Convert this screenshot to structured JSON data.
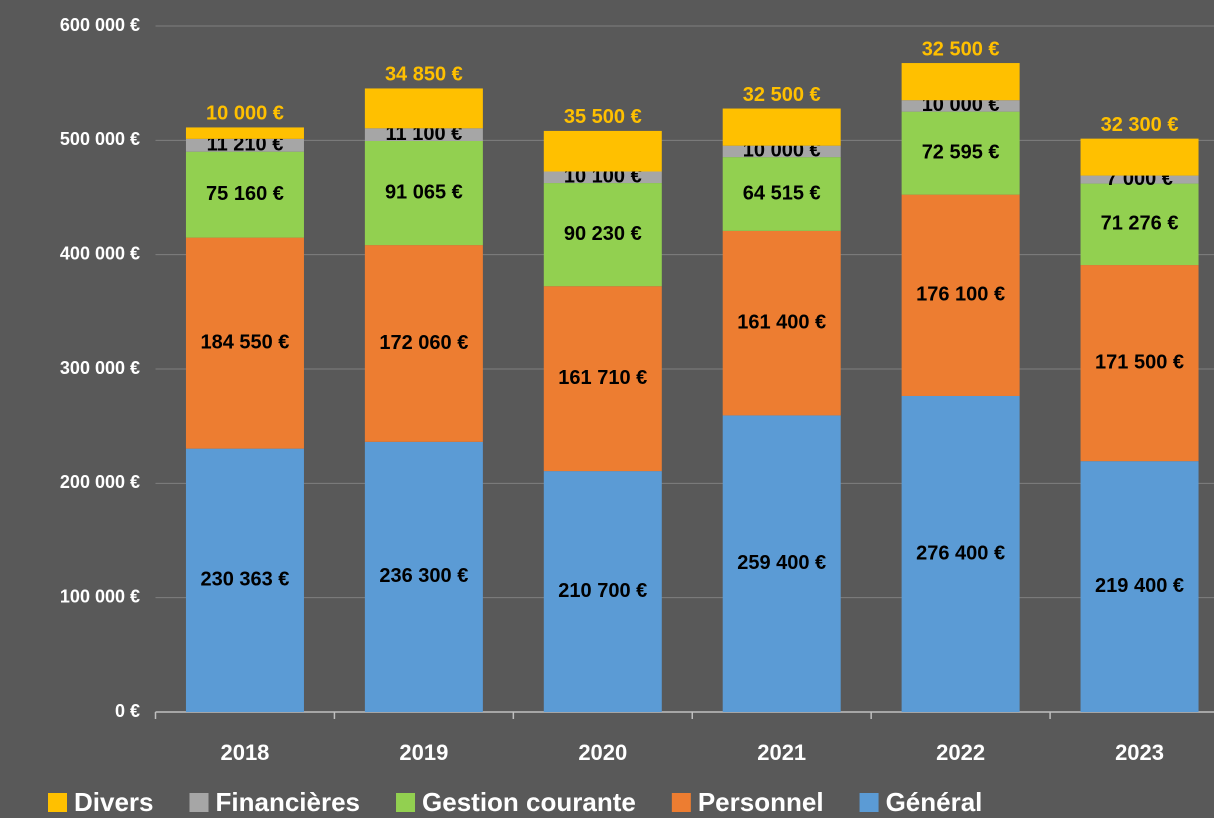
{
  "chart_data": {
    "type": "stacked_bar",
    "categories": [
      "2018",
      "2019",
      "2020",
      "2021",
      "2022",
      "2023"
    ],
    "series": [
      {
        "name": "Divers",
        "color": "#ffc000",
        "values": [
          10000,
          34850,
          35500,
          32500,
          32500,
          32300
        ],
        "value_labels": [
          "10 000 €",
          "34 850 €",
          "35 500 €",
          "32 500 €",
          "32 500 €",
          "32 300 €"
        ]
      },
      {
        "name": "Financières",
        "color": "#a6a6a6",
        "values": [
          11210,
          11100,
          10100,
          10000,
          10000,
          7000
        ],
        "value_labels": [
          "11 210 €",
          "11 100 €",
          "10 100 €",
          "10 000 €",
          "10 000 €",
          "7 000 €"
        ]
      },
      {
        "name": "Gestion courante",
        "color": "#92d050",
        "values": [
          75160,
          91065,
          90230,
          64515,
          72595,
          71276
        ],
        "value_labels": [
          "75 160 €",
          "91 065 €",
          "90 230 €",
          "64 515 €",
          "72 595 €",
          "71 276 €"
        ]
      },
      {
        "name": "Personnel",
        "color": "#ed7d31",
        "values": [
          184550,
          172060,
          161710,
          161400,
          176100,
          171500
        ],
        "value_labels": [
          "184 550 €",
          "172 060 €",
          "161 710 €",
          "161 400 €",
          "176 100 €",
          "171 500 €"
        ]
      },
      {
        "name": "Général",
        "color": "#5b9bd5",
        "values": [
          230363,
          236300,
          210700,
          259400,
          276400,
          219400
        ],
        "value_labels": [
          "230 363 €",
          "236 300 €",
          "210 700 €",
          "259 400 €",
          "276 400 €",
          "219 400 €"
        ]
      }
    ],
    "ylim": [
      0,
      600000
    ],
    "yticks": [
      {
        "value": 0,
        "label": "0 €"
      },
      {
        "value": 100000,
        "label": "100 000 €"
      },
      {
        "value": 200000,
        "label": "200 000 €"
      },
      {
        "value": 300000,
        "label": "300 000 €"
      },
      {
        "value": 400000,
        "label": "400 000 €"
      },
      {
        "value": 500000,
        "label": "500 000 €"
      },
      {
        "value": 600000,
        "label": "600 000 €"
      }
    ],
    "grid": true,
    "legend": "bottom"
  }
}
